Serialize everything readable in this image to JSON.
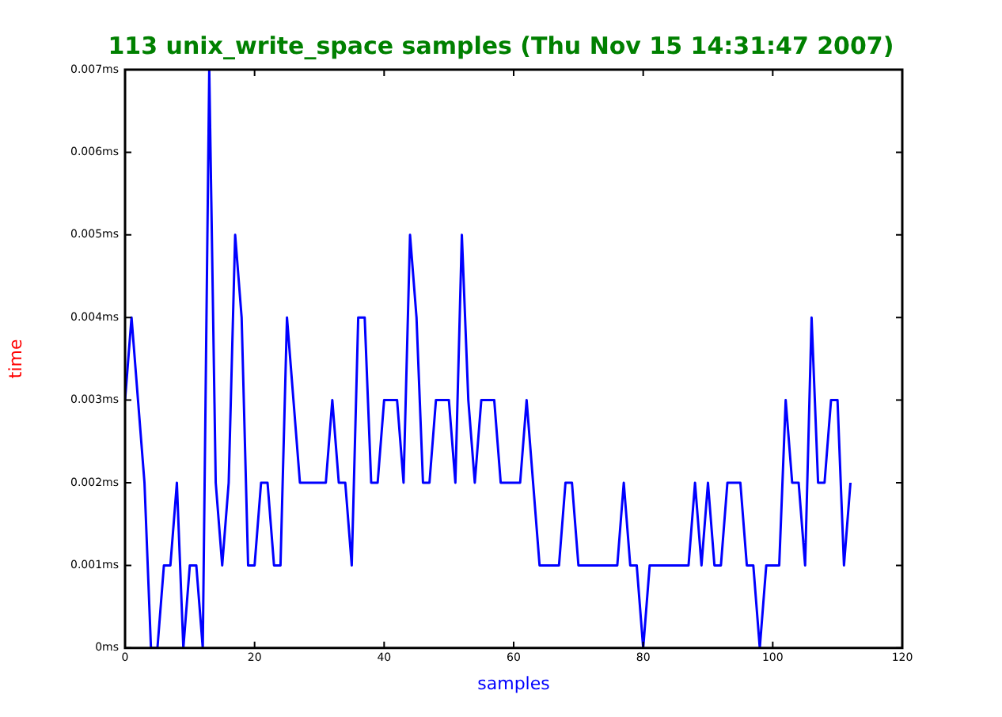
{
  "chart_data": {
    "type": "line",
    "title": "113 unix_write_space samples (Thu Nov 15 14:31:47 2007)",
    "xlabel": "samples",
    "ylabel": "time",
    "x": [
      0,
      1,
      2,
      3,
      4,
      5,
      6,
      7,
      8,
      9,
      10,
      11,
      12,
      13,
      14,
      15,
      16,
      17,
      18,
      19,
      20,
      21,
      22,
      23,
      24,
      25,
      26,
      27,
      28,
      29,
      30,
      31,
      32,
      33,
      34,
      35,
      36,
      37,
      38,
      39,
      40,
      41,
      42,
      43,
      44,
      45,
      46,
      47,
      48,
      49,
      50,
      51,
      52,
      53,
      54,
      55,
      56,
      57,
      58,
      59,
      60,
      61,
      62,
      63,
      64,
      65,
      66,
      67,
      68,
      69,
      70,
      71,
      72,
      73,
      74,
      75,
      76,
      77,
      78,
      79,
      80,
      81,
      82,
      83,
      84,
      85,
      86,
      87,
      88,
      89,
      90,
      91,
      92,
      93,
      94,
      95,
      96,
      97,
      98,
      99,
      100,
      101,
      102,
      103,
      104,
      105,
      106,
      107,
      108,
      109,
      110,
      111,
      112
    ],
    "series": [
      {
        "color": "#0000ff",
        "values": [
          0.003,
          0.004,
          0.003,
          0.002,
          0,
          0,
          0.001,
          0.001,
          0.002,
          0,
          0.001,
          0.001,
          0,
          0.007,
          0.002,
          0.001,
          0.002,
          0.005,
          0.004,
          0.001,
          0.001,
          0.002,
          0.002,
          0.001,
          0.001,
          0.004,
          0.003,
          0.002,
          0.002,
          0.002,
          0.002,
          0.002,
          0.003,
          0.002,
          0.002,
          0.001,
          0.004,
          0.004,
          0.002,
          0.002,
          0.003,
          0.003,
          0.003,
          0.002,
          0.005,
          0.004,
          0.002,
          0.002,
          0.003,
          0.003,
          0.003,
          0.002,
          0.005,
          0.003,
          0.002,
          0.003,
          0.003,
          0.003,
          0.002,
          0.002,
          0.002,
          0.002,
          0.003,
          0.002,
          0.001,
          0.001,
          0.001,
          0.001,
          0.002,
          0.002,
          0.001,
          0.001,
          0.001,
          0.001,
          0.001,
          0.001,
          0.001,
          0.002,
          0.001,
          0.001,
          0,
          0.001,
          0.001,
          0.001,
          0.001,
          0.001,
          0.001,
          0.001,
          0.002,
          0.001,
          0.002,
          0.001,
          0.001,
          0.002,
          0.002,
          0.002,
          0.001,
          0.001,
          0,
          0.001,
          0.001,
          0.001,
          0.003,
          0.002,
          0.002,
          0.001,
          0.004,
          0.002,
          0.002,
          0.003,
          0.003,
          0.001,
          0.002
        ]
      }
    ],
    "xlim": [
      0,
      120
    ],
    "xticks": [
      0,
      20,
      40,
      60,
      80,
      100,
      120
    ],
    "ylim": [
      0,
      0.007
    ],
    "yticks": [
      {
        "value": 0,
        "label": "0ms"
      },
      {
        "value": 0.001,
        "label": "0.001ms"
      },
      {
        "value": 0.002,
        "label": "0.002ms"
      },
      {
        "value": 0.003,
        "label": "0.003ms"
      },
      {
        "value": 0.004,
        "label": "0.004ms"
      },
      {
        "value": 0.005,
        "label": "0.005ms"
      },
      {
        "value": 0.006,
        "label": "0.006ms"
      },
      {
        "value": 0.007,
        "label": "0.007ms"
      }
    ],
    "grid": false,
    "legend": false,
    "marker": "none",
    "line_style": "solid"
  }
}
